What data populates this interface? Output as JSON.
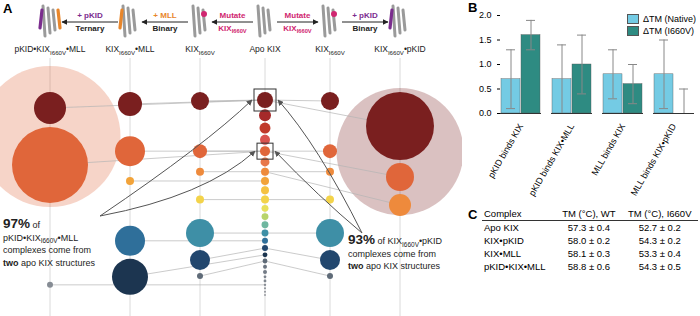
{
  "chart_data": {
    "type": "bar",
    "title": "B",
    "categories": [
      "pKID binds KIX",
      "pKID binds KIX•MLL",
      "MLL binds KIX",
      "MLL binds KIX•pKID"
    ],
    "series": [
      {
        "name": "ΔTM (Native)",
        "color": "#74cbe4",
        "values": [
          0.7,
          0.7,
          0.8,
          0.8
        ],
        "errors": [
          0.6,
          0.7,
          0.5,
          0.7
        ]
      },
      {
        "name": "ΔTM (I660V)",
        "color": "#2e8b82",
        "values": [
          1.6,
          1.0,
          0.6,
          0.0
        ],
        "errors": [
          0.3,
          0.6,
          0.4,
          0.5
        ]
      }
    ],
    "ylim": [
      0,
      2
    ],
    "yticks": [
      {
        "value": 0,
        "label": "0.0"
      },
      0.5,
      {
        "value": 1,
        "label": "1.0"
      },
      1.5,
      {
        "value": 2,
        "label": "2.0"
      }
    ],
    "legend": "top-right",
    "grid": false
  },
  "diagram": {
    "label": "A",
    "state_colors": [
      "#7a1f1f",
      "#a52a2a",
      "#c0392b",
      "#d9534f",
      "#e0663a",
      "#e8774a",
      "#ee8a3c",
      "#f2a33a",
      "#f5c242",
      "#f3d34a",
      "#e8e05a",
      "#b8d46a",
      "#6fb7a0",
      "#3e8fa6",
      "#2f6f9a",
      "#22476e",
      "#1c3550",
      "#5f6b78",
      "#6b7480",
      "#737b86",
      "#7a818b",
      "#80878f",
      "#868c94",
      "#8c9198",
      "#92969c",
      "#989ba0"
    ],
    "highlighted_states": [
      0,
      4
    ],
    "columns": [
      {
        "label": [
          {
            "text": "pKID•KIX"
          },
          {
            "text": "I660V",
            "style": "sub"
          },
          {
            "text": "•MLL"
          }
        ],
        "circles": [
          {
            "state": 0,
            "size": 256
          },
          {
            "state": 4,
            "size": 1444
          },
          {
            "state": 22,
            "size": 9
          }
        ]
      },
      {
        "label": [
          {
            "text": "KIX"
          },
          {
            "text": "I660V",
            "style": "sub"
          },
          {
            "text": "•MLL"
          }
        ],
        "circles": [
          {
            "state": 0,
            "size": 144
          },
          {
            "state": 4,
            "size": 225
          },
          {
            "state": 7,
            "size": 16
          },
          {
            "state": 14,
            "size": 225
          },
          {
            "state": 16,
            "size": 324
          }
        ]
      },
      {
        "label": [
          {
            "text": "KIX"
          },
          {
            "text": "I660V",
            "style": "sub"
          }
        ],
        "circles": [
          {
            "state": 0,
            "size": 81
          },
          {
            "state": 4,
            "size": 49
          },
          {
            "state": 6,
            "size": 16
          },
          {
            "state": 9,
            "size": 16
          },
          {
            "state": 13,
            "size": 196
          },
          {
            "state": 15,
            "size": 100
          },
          {
            "state": 17,
            "size": 9
          }
        ]
      },
      {
        "label": [
          {
            "text": "Apo KIX"
          }
        ],
        "circles": [
          {
            "state": 0,
            "size": 64
          },
          {
            "state": 1,
            "size": 36
          },
          {
            "state": 2,
            "size": 30
          },
          {
            "state": 3,
            "size": 25
          },
          {
            "state": 4,
            "size": 25
          },
          {
            "state": 5,
            "size": 20
          },
          {
            "state": 6,
            "size": 16
          },
          {
            "state": 7,
            "size": 16
          },
          {
            "state": 8,
            "size": 16
          },
          {
            "state": 9,
            "size": 16
          },
          {
            "state": 10,
            "size": 12
          },
          {
            "state": 11,
            "size": 12
          },
          {
            "state": 12,
            "size": 12
          },
          {
            "state": 13,
            "size": 12
          },
          {
            "state": 14,
            "size": 9
          },
          {
            "state": 15,
            "size": 9
          },
          {
            "state": 16,
            "size": 6
          },
          {
            "state": 17,
            "size": 6
          },
          {
            "state": 18,
            "size": 4
          },
          {
            "state": 19,
            "size": 4
          },
          {
            "state": 20,
            "size": 2
          },
          {
            "state": 21,
            "size": 2
          },
          {
            "state": 22,
            "size": 1.4
          },
          {
            "state": 23,
            "size": 1
          },
          {
            "state": 24,
            "size": 1
          },
          {
            "state": 25,
            "size": 1
          }
        ]
      },
      {
        "label": [
          {
            "text": "KIX"
          },
          {
            "text": "I660V",
            "style": "sub"
          }
        ],
        "circles": [
          {
            "state": 0,
            "size": 81
          },
          {
            "state": 4,
            "size": 49
          },
          {
            "state": 6,
            "size": 16
          },
          {
            "state": 9,
            "size": 16
          },
          {
            "state": 13,
            "size": 196
          },
          {
            "state": 15,
            "size": 100
          },
          {
            "state": 17,
            "size": 9
          }
        ]
      },
      {
        "label": [
          {
            "text": "KIX"
          },
          {
            "text": "I660V",
            "style": "sub"
          },
          {
            "text": "•pKID"
          }
        ],
        "circles": [
          {
            "state": 0,
            "size": 1156
          },
          {
            "state": 4,
            "size": 196
          },
          {
            "state": 6,
            "size": 121
          }
        ]
      }
    ],
    "arrows": [
      {
        "from": 1,
        "to": 0,
        "above": [
          {
            "text": "+ pKID"
          }
        ],
        "below": [
          {
            "text": "Ternary"
          }
        ],
        "color": "#7b2d8e",
        "below_color": "#222222"
      },
      {
        "from": 2,
        "to": 1,
        "above": [
          {
            "text": "+ MLL"
          }
        ],
        "below": [
          {
            "text": "Binary"
          }
        ],
        "color": "#e8862b",
        "below_color": "#222222"
      },
      {
        "from": 3,
        "to": 2,
        "above": [
          {
            "text": "Mutate"
          }
        ],
        "below": [
          {
            "text": "KIX"
          },
          {
            "text": "I660V",
            "style": "sub"
          }
        ],
        "color": "#d02670",
        "below_color": "#d02670"
      },
      {
        "from": 3,
        "to": 4,
        "above": [
          {
            "text": "Mutate"
          }
        ],
        "below": [
          {
            "text": "KIX"
          },
          {
            "text": "I660V",
            "style": "sub"
          }
        ],
        "color": "#d02670",
        "below_color": "#d02670"
      },
      {
        "from": 4,
        "to": 5,
        "above": [
          {
            "text": "+ pKID"
          }
        ],
        "below": [
          {
            "text": "Binary"
          }
        ],
        "color": "#7b2d8e",
        "below_color": "#222222"
      }
    ],
    "annotations": [
      {
        "column": 0,
        "states": [
          0,
          4
        ],
        "lines": [
          [
            {
              "text": "97%",
              "style": "emphasis"
            },
            {
              "text": " of"
            }
          ],
          [
            {
              "text": "pKID•KIX"
            },
            {
              "text": "I660V",
              "style": "sub"
            },
            {
              "text": "•MLL"
            }
          ],
          [
            {
              "text": "complexes come from"
            }
          ],
          [
            {
              "text": "two",
              "style": "bold"
            },
            {
              "text": " apo KIX structures"
            }
          ]
        ]
      },
      {
        "column": 5,
        "states": [
          0,
          4
        ],
        "lines": [
          [
            {
              "text": "93%",
              "style": "emphasis"
            },
            {
              "text": " of KIX"
            },
            {
              "text": "I660V",
              "style": "sub"
            },
            {
              "text": "•pKID"
            }
          ],
          [
            {
              "text": "complexes come from"
            }
          ],
          [
            {
              "text": "two",
              "style": "bold"
            },
            {
              "text": " apo KIX structures"
            }
          ]
        ]
      }
    ]
  },
  "table": {
    "label": "C",
    "header": [
      "Complex",
      "TM (°C), WT",
      "TM (°C), I660V"
    ],
    "rows": [
      [
        "Apo KIX",
        "57.3 ± 0.4",
        "52.7 ± 0.2"
      ],
      [
        "KIX•pKID",
        "58.0 ± 0.2",
        "54.3 ± 0.2"
      ],
      [
        "KIX•MLL",
        "58.1 ± 0.3",
        "53.3 ± 0.4"
      ],
      [
        "pKID•KIX•MLL",
        "58.8 ± 0.6",
        "54.3 ± 0.5"
      ]
    ]
  }
}
